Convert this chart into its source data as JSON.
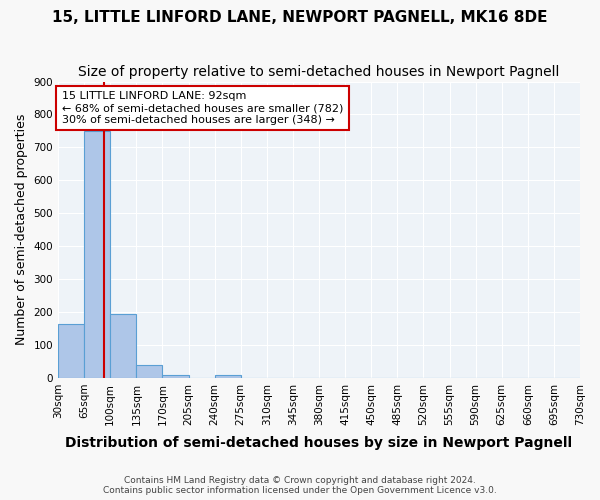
{
  "title": "15, LITTLE LINFORD LANE, NEWPORT PAGNELL, MK16 8DE",
  "subtitle": "Size of property relative to semi-detached houses in Newport Pagnell",
  "xlabel": "Distribution of semi-detached houses by size in Newport Pagnell",
  "ylabel": "Number of semi-detached properties",
  "footnote1": "Contains HM Land Registry data © Crown copyright and database right 2024.",
  "footnote2": "Contains public sector information licensed under the Open Government Licence v3.0.",
  "property_size": 92,
  "bin_labels": [
    "30sqm",
    "65sqm",
    "100sqm",
    "135sqm",
    "170sqm",
    "205sqm",
    "240sqm",
    "275sqm",
    "310sqm",
    "345sqm",
    "380sqm",
    "415sqm",
    "450sqm",
    "485sqm",
    "520sqm",
    "555sqm",
    "590sqm",
    "625sqm",
    "660sqm",
    "695sqm",
    "730sqm"
  ],
  "bin_edges": [
    30,
    65,
    100,
    135,
    170,
    205,
    240,
    275,
    310,
    345,
    380,
    415,
    450,
    485,
    520,
    555,
    590,
    625,
    660,
    695,
    730
  ],
  "bar_heights": [
    165,
    750,
    195,
    40,
    10,
    0,
    10,
    0,
    0,
    0,
    0,
    0,
    0,
    0,
    0,
    0,
    0,
    0,
    0,
    0
  ],
  "bar_color": "#aec6e8",
  "bar_edge_color": "#5a9fd4",
  "red_line_color": "#cc0000",
  "legend_text_line1": "15 LITTLE LINFORD LANE: 92sqm",
  "legend_text_line2": "← 68% of semi-detached houses are smaller (782)",
  "legend_text_line3": "30% of semi-detached houses are larger (348) →",
  "legend_box_color": "#cc0000",
  "ylim": [
    0,
    900
  ],
  "background_color": "#eef3f8",
  "grid_color": "#ffffff",
  "title_fontsize": 11,
  "subtitle_fontsize": 10,
  "axis_label_fontsize": 9,
  "tick_fontsize": 7.5,
  "legend_fontsize": 8
}
